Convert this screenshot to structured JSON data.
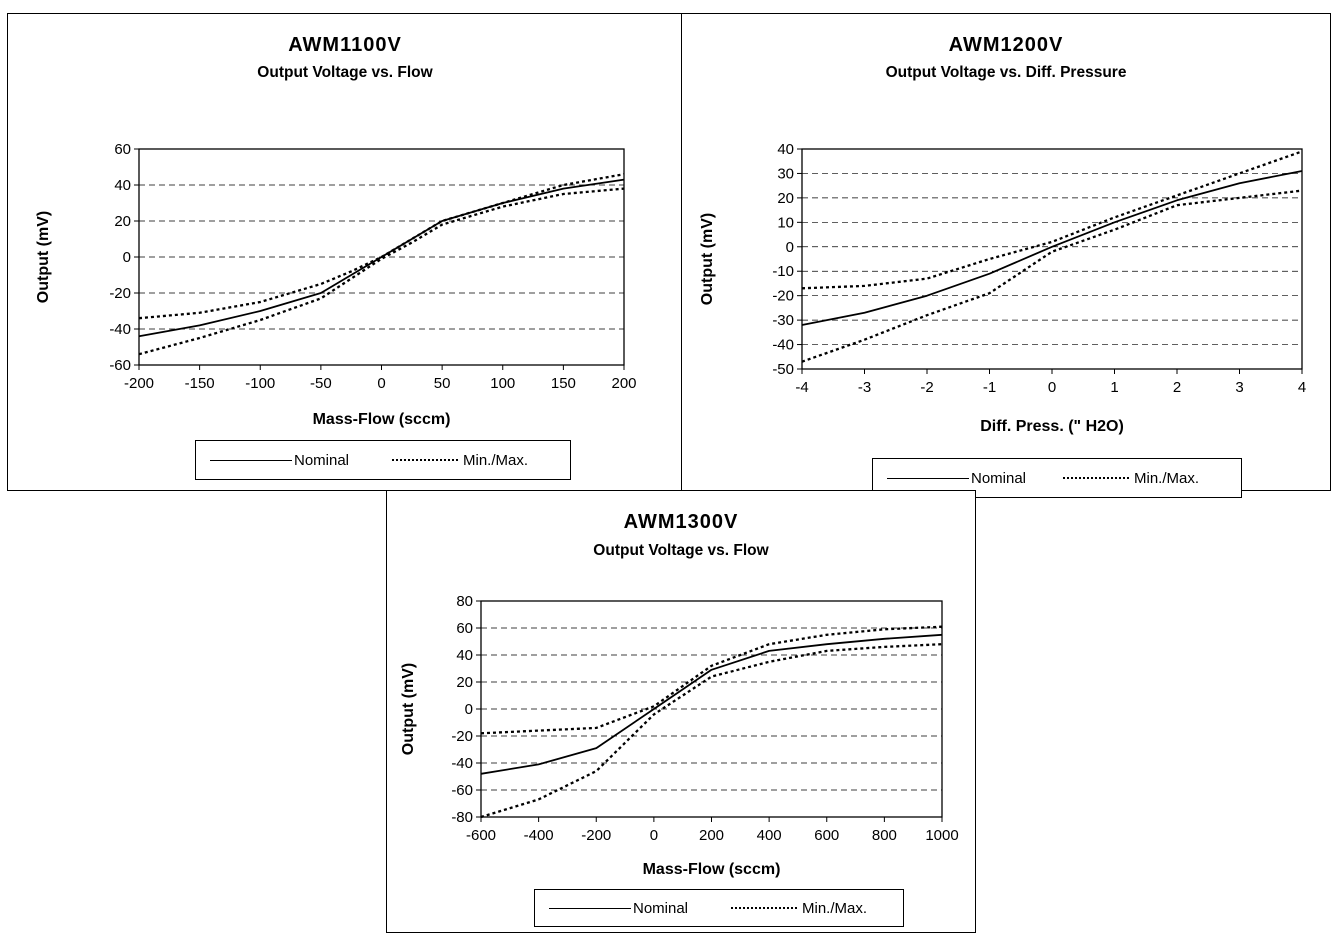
{
  "chart_data": [
    {
      "type": "line",
      "title": "AWM1100V",
      "subtitle": "Output Voltage vs. Flow",
      "xlabel": "Mass-Flow (sccm)",
      "ylabel": "Output (mV)",
      "xlim": [
        -200,
        200
      ],
      "ylim": [
        -60,
        60
      ],
      "xticks": [
        -200,
        -150,
        -100,
        -50,
        0,
        50,
        100,
        150,
        200
      ],
      "yticks": [
        60,
        40,
        20,
        0,
        -20,
        -40,
        -60
      ],
      "grid": "horizontal dashed",
      "legend_position": "bottom",
      "series": [
        {
          "name": "Nominal",
          "style": "solid",
          "x": [
            -200,
            -150,
            -100,
            -50,
            -25,
            0,
            25,
            50,
            100,
            150,
            200
          ],
          "y": [
            -44,
            -38,
            -30,
            -20,
            -10,
            0,
            10,
            20,
            30,
            38,
            43
          ]
        },
        {
          "name": "Min./Max.",
          "style": "dotted",
          "x": [
            -200,
            -150,
            -100,
            -50,
            -25,
            0,
            25,
            50,
            100,
            150,
            200
          ],
          "y": [
            -34,
            -31,
            -25,
            -15,
            -8,
            0,
            10,
            20,
            30,
            40,
            46
          ]
        },
        {
          "style": "dotted",
          "x": [
            -200,
            -150,
            -100,
            -50,
            -25,
            0,
            25,
            50,
            100,
            150,
            200
          ],
          "y": [
            -54,
            -45,
            -35,
            -23,
            -12,
            -1,
            8,
            18,
            28,
            35,
            38
          ]
        }
      ]
    },
    {
      "type": "line",
      "title": "AWM1200V",
      "subtitle": "Output Voltage vs. Diff. Pressure",
      "xlabel": "Diff. Press. (\" H2O)",
      "ylabel": "Output (mV)",
      "xlim": [
        -4,
        4
      ],
      "ylim": [
        -50,
        40
      ],
      "xticks": [
        -4,
        -3,
        -2,
        -1,
        0,
        1,
        2,
        3,
        4
      ],
      "yticks": [
        40,
        30,
        20,
        10,
        0,
        -10,
        -20,
        -30,
        -40,
        -50
      ],
      "grid": "horizontal dashed",
      "legend_position": "bottom",
      "series": [
        {
          "name": "Nominal",
          "style": "solid",
          "x": [
            -4,
            -3,
            -2,
            -1,
            0,
            1,
            2,
            3,
            4
          ],
          "y": [
            -32,
            -27,
            -20,
            -11,
            0,
            10,
            19,
            26,
            31
          ]
        },
        {
          "name": "Min./Max.",
          "style": "dotted",
          "x": [
            -4,
            -3,
            -2,
            -1,
            0,
            1,
            2,
            3,
            4
          ],
          "y": [
            -17,
            -16,
            -13,
            -5,
            2,
            12,
            21,
            30,
            39
          ]
        },
        {
          "style": "dotted",
          "x": [
            -4,
            -3,
            -2,
            -1,
            0,
            1,
            2,
            3,
            4
          ],
          "y": [
            -47,
            -38,
            -28,
            -19,
            -2,
            7,
            17,
            20,
            23
          ]
        }
      ]
    },
    {
      "type": "line",
      "title": "AWM1300V",
      "subtitle": "Output Voltage vs. Flow",
      "xlabel": "Mass-Flow (sccm)",
      "ylabel": "Output (mV)",
      "xlim": [
        -600,
        1000
      ],
      "ylim": [
        -80,
        80
      ],
      "xticks": [
        -600,
        -400,
        -200,
        0,
        200,
        400,
        600,
        800,
        1000
      ],
      "yticks": [
        80,
        60,
        40,
        20,
        0,
        -20,
        -40,
        -60,
        -80
      ],
      "grid": "horizontal dashed",
      "legend_position": "bottom",
      "series": [
        {
          "name": "Nominal",
          "style": "solid",
          "x": [
            -600,
            -400,
            -200,
            0,
            200,
            400,
            600,
            800,
            1000
          ],
          "y": [
            -48,
            -41,
            -29,
            0,
            29,
            43,
            48,
            52,
            55
          ]
        },
        {
          "name": "Min./Max.",
          "style": "dotted",
          "x": [
            -600,
            -400,
            -200,
            0,
            200,
            400,
            600,
            800,
            1000
          ],
          "y": [
            -18,
            -16,
            -14,
            2,
            32,
            48,
            55,
            59,
            61
          ]
        },
        {
          "style": "dotted",
          "x": [
            -600,
            -400,
            -200,
            0,
            200,
            400,
            600,
            800,
            1000
          ],
          "y": [
            -80,
            -67,
            -46,
            -4,
            24,
            35,
            43,
            46,
            48
          ]
        }
      ]
    }
  ]
}
